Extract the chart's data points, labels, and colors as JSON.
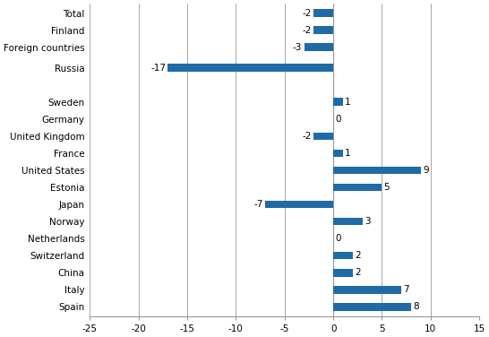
{
  "categories": [
    "Spain",
    "Italy",
    "China",
    "Switzerland",
    "Netherlands",
    "Norway",
    "Japan",
    "Estonia",
    "United States",
    "France",
    "United Kingdom",
    "Germany",
    "Sweden",
    "Russia",
    "Foreign countries",
    "Finland",
    "Total"
  ],
  "values": [
    8,
    7,
    2,
    2,
    0,
    3,
    -7,
    5,
    9,
    1,
    -2,
    0,
    1,
    -17,
    -3,
    -2,
    -2
  ],
  "y_positions": [
    0,
    1,
    2,
    3,
    4,
    5,
    6,
    7,
    8,
    9,
    10,
    11,
    12,
    14,
    15.2,
    16.2,
    17.2
  ],
  "bar_color": "#1F6BA8",
  "xlim": [
    -25,
    15
  ],
  "xticks": [
    -25,
    -20,
    -15,
    -10,
    -5,
    0,
    5,
    10,
    15
  ],
  "grid_color": "#999999",
  "bg_color": "#FFFFFF",
  "label_fontsize": 7.5,
  "value_fontsize": 7.5,
  "bar_height": 0.45
}
